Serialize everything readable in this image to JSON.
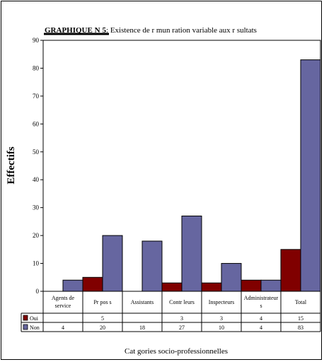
{
  "chart_data": {
    "type": "bar",
    "title_prefix": "GRAPHIQUE N",
    "title_number": "5",
    "title_rest": ": Existence de r  mun  ration variable aux r  sultats",
    "ylabel": "Effectifs",
    "xlabel": "Cat  gories socio-professionnelles",
    "ylim": [
      0,
      90
    ],
    "yticks": [
      0,
      10,
      20,
      30,
      40,
      50,
      60,
      70,
      80,
      90
    ],
    "categories": [
      [
        "Agents de",
        "service"
      ],
      [
        "Pr  pos  s"
      ],
      [
        "Assistants"
      ],
      [
        "Contr  leurs"
      ],
      [
        "Inspecteurs"
      ],
      [
        "Administrateur",
        "s"
      ],
      [
        "Total"
      ]
    ],
    "series": [
      {
        "name": "Oui",
        "color": "#800000",
        "values": [
          null,
          5,
          null,
          3,
          3,
          4,
          15
        ],
        "labels": [
          "",
          "5",
          "",
          "3",
          "3",
          "4",
          "15"
        ]
      },
      {
        "name": "Non",
        "color": "#6666a0",
        "values": [
          4,
          20,
          18,
          27,
          10,
          4,
          83
        ],
        "labels": [
          "4",
          "20",
          "18",
          "27",
          "10",
          "4",
          "83"
        ]
      }
    ],
    "legend": "data-table"
  }
}
